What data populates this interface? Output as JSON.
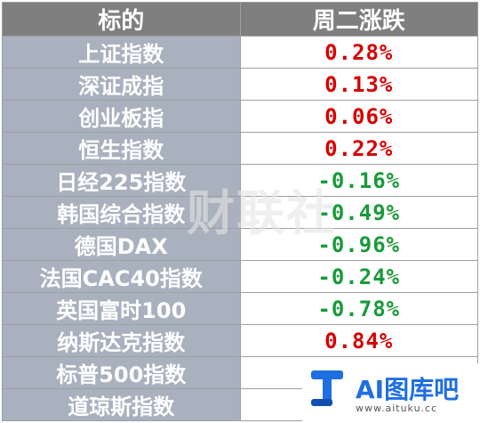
{
  "table": {
    "headers": [
      "标的",
      "周二涨跌"
    ],
    "rows": [
      {
        "name": "上证指数",
        "change": "0.28%",
        "direction": "up"
      },
      {
        "name": "深证成指",
        "change": "0.13%",
        "direction": "up"
      },
      {
        "name": "创业板指",
        "change": "0.06%",
        "direction": "up"
      },
      {
        "name": "恒生指数",
        "change": "0.22%",
        "direction": "up"
      },
      {
        "name": "日经225指数",
        "change": "-0.16%",
        "direction": "down"
      },
      {
        "name": "韩国综合指数",
        "change": "-0.49%",
        "direction": "down"
      },
      {
        "name": "德国DAX",
        "change": "-0.96%",
        "direction": "down"
      },
      {
        "name": "法国CAC40指数",
        "change": "-0.24%",
        "direction": "down"
      },
      {
        "name": "英国富时100",
        "change": "-0.78%",
        "direction": "down"
      },
      {
        "name": "纳斯达克指数",
        "change": "0.84%",
        "direction": "up"
      },
      {
        "name": "标普500指数",
        "change": "",
        "direction": ""
      },
      {
        "name": "道琼斯指数",
        "change": "",
        "direction": ""
      }
    ]
  },
  "colors": {
    "up": "#d60000",
    "down": "#1a9a3a",
    "header_bg": "#7f7f7f",
    "name_bg": "#a9b1be"
  },
  "watermark": {
    "center_text": "财联社"
  },
  "logo": {
    "text": "AI图库吧",
    "url": "www.aituku.cc",
    "icon": "t-logo-icon"
  }
}
